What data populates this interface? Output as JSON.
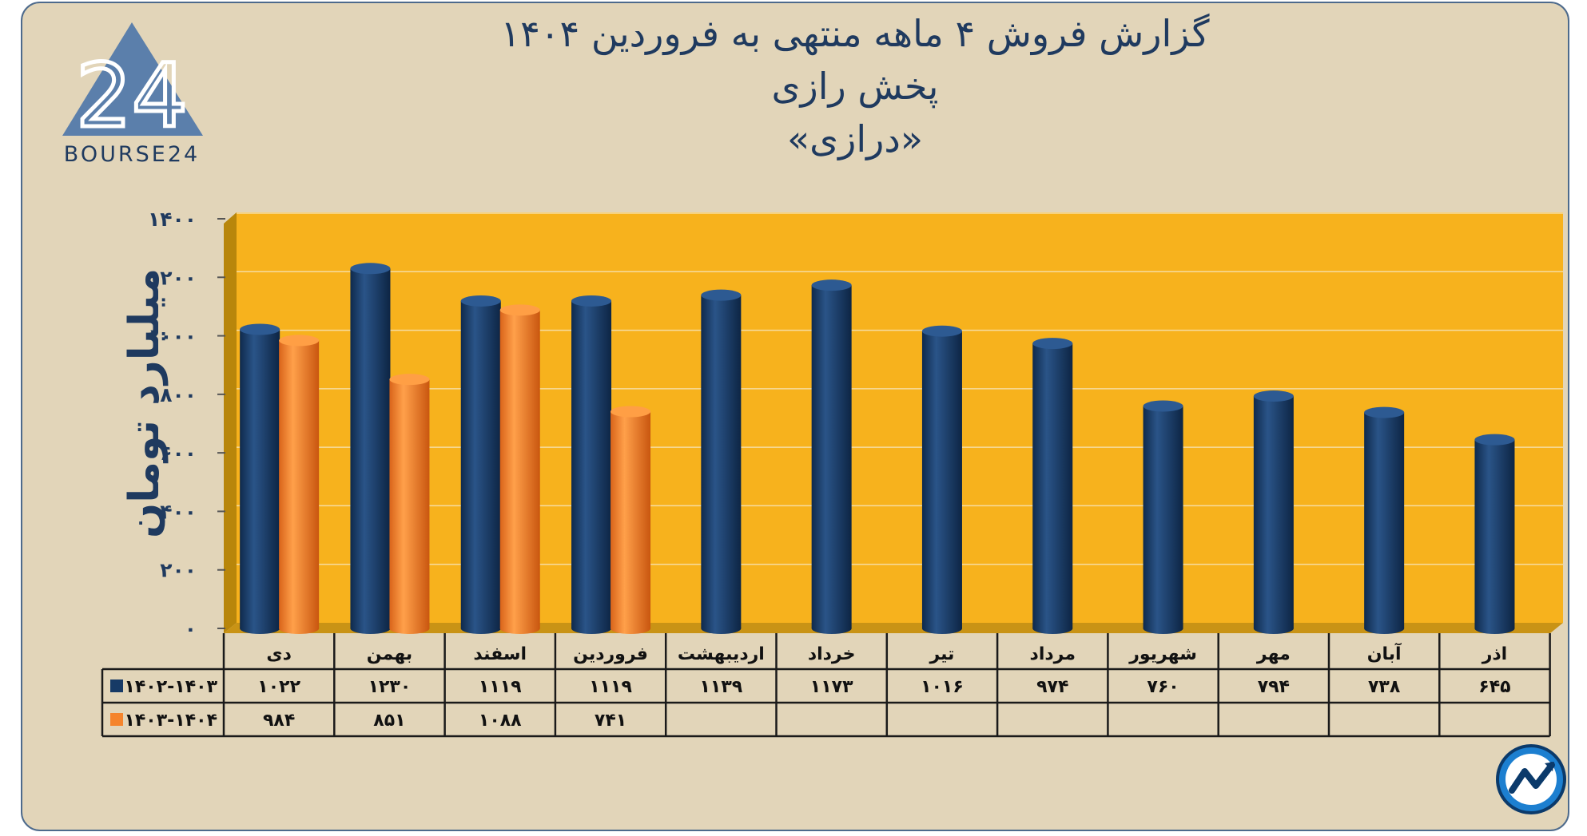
{
  "header": {
    "title_line1": "گزارش  فروش ۴ ماهه منتهی به فروردین ۱۴۰۴",
    "title_line2": "پخش رازی",
    "title_line3": "«درازی»"
  },
  "logo": {
    "brand": "BOURSE24",
    "mark": "24"
  },
  "colors": {
    "background": "#e2d5b9",
    "plot_area": "#f7b21d",
    "series_1": "#173a66",
    "series_2": "#f5842c",
    "text": "#1f3a5f"
  },
  "chart_data": {
    "type": "bar",
    "ylabel": "میلیارد تومان",
    "ylim": [
      0,
      1400
    ],
    "yticks": [
      0,
      200,
      400,
      600,
      800,
      1000,
      1200,
      1400
    ],
    "ytick_labels": [
      "۰",
      "۲۰۰",
      "۴۰۰",
      "۶۰۰",
      "۸۰۰",
      "۱۰۰۰",
      "۱۲۰۰",
      "۱۴۰۰"
    ],
    "grid": true,
    "legend": "data-table",
    "categories": [
      "دی",
      "بهمن",
      "اسفند",
      "فروردین",
      "اردیبهشت",
      "خرداد",
      "تیر",
      "مرداد",
      "شهریور",
      "مهر",
      "آبان",
      "اذر"
    ],
    "series": [
      {
        "name": "۱۴۰۲-۱۴۰۳",
        "values": [
          1022,
          1230,
          1119,
          1119,
          1139,
          1173,
          1016,
          974,
          760,
          794,
          738,
          645
        ],
        "labels": [
          "۱۰۲۲",
          "۱۲۳۰",
          "۱۱۱۹",
          "۱۱۱۹",
          "۱۱۳۹",
          "۱۱۷۳",
          "۱۰۱۶",
          "۹۷۴",
          "۷۶۰",
          "۷۹۴",
          "۷۳۸",
          "۶۴۵"
        ]
      },
      {
        "name": "۱۴۰۳-۱۴۰۴",
        "values": [
          984,
          851,
          1088,
          741,
          null,
          null,
          null,
          null,
          null,
          null,
          null,
          null
        ],
        "labels": [
          "۹۸۴",
          "۸۵۱",
          "۱۰۸۸",
          "۷۴۱",
          "",
          "",
          "",
          "",
          "",
          "",
          "",
          ""
        ]
      }
    ]
  }
}
